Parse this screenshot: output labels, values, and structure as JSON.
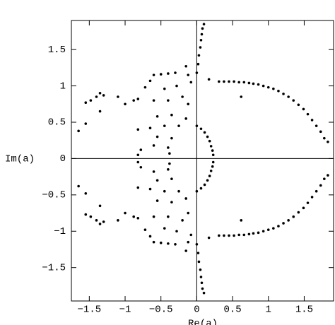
{
  "chart_data": {
    "type": "scatter",
    "x_label": "Re(a)",
    "y_label": "Im(a)",
    "xlim": [
      -1.75,
      1.91
    ],
    "ylim": [
      -1.96,
      1.9
    ],
    "xticks": [
      {
        "value": -1.5,
        "label": "−1.5"
      },
      {
        "value": -1,
        "label": "−1"
      },
      {
        "value": -0.5,
        "label": "−0.5"
      },
      0,
      0.5,
      1,
      1.5
    ],
    "yticks": [
      {
        "value": -1.5,
        "label": "−1.5"
      },
      {
        "value": -1,
        "label": "−1"
      },
      {
        "value": -0.5,
        "label": "−0.5"
      },
      0,
      0.5,
      1,
      1.5
    ],
    "color": "#000000",
    "x": [
      0.17,
      0.31,
      0.38,
      0.45,
      0.52,
      0.59,
      0.66,
      0.73,
      0.79,
      0.86,
      0.93,
      1.0,
      1.07,
      1.14,
      1.21,
      1.28,
      1.35,
      1.42,
      1.49,
      1.55,
      1.61,
      1.67,
      1.73,
      1.78,
      1.83,
      0.62,
      0.0,
      0.06,
      0.11,
      0.15,
      0.18,
      0.2,
      0.22,
      0.23,
      0.0,
      0.02,
      0.03,
      0.05,
      0.06,
      0.07,
      0.08,
      0.1,
      -0.15,
      -0.12,
      -0.3,
      -0.4,
      -0.5,
      -0.6,
      -0.65,
      -0.72,
      -0.45,
      -0.28,
      -0.08,
      -0.2,
      -0.12,
      -0.4,
      -0.6,
      -0.82,
      -0.35,
      -0.55,
      -0.15,
      -0.25,
      -0.45,
      -0.65,
      -0.82,
      -0.35,
      -0.55,
      -0.4,
      -0.6,
      -0.78,
      -0.38,
      -0.82,
      -1.65,
      -1.55,
      -1.55,
      -1.48,
      -1.4,
      -1.35,
      -1.3,
      -1.35,
      -1.1,
      -1.0,
      -0.88,
      0.17,
      0.31,
      0.38,
      0.45,
      0.52,
      0.59,
      0.66,
      0.73,
      0.79,
      0.86,
      0.93,
      1.0,
      1.07,
      1.14,
      1.21,
      1.28,
      1.35,
      1.42,
      1.49,
      1.55,
      1.61,
      1.67,
      1.73,
      1.78,
      1.83,
      0.62,
      0.0,
      0.06,
      0.11,
      0.15,
      0.18,
      0.2,
      0.22,
      0.23,
      0.0,
      0.02,
      0.03,
      0.05,
      0.06,
      0.07,
      0.08,
      0.1,
      -0.15,
      -0.12,
      -0.3,
      -0.4,
      -0.5,
      -0.6,
      -0.65,
      -0.72,
      -0.45,
      -0.28,
      -0.08,
      -0.2,
      -0.12,
      -0.4,
      -0.6,
      -0.82,
      -0.35,
      -0.55,
      -0.15,
      -0.25,
      -0.45,
      -0.65,
      -0.82,
      -0.35,
      -0.55,
      -0.4,
      -0.6,
      -0.78,
      -0.38,
      -0.82,
      -1.65,
      -1.55,
      -1.55,
      -1.48,
      -1.4,
      -1.35,
      -1.3,
      -1.35,
      -1.1,
      -1.0,
      -0.88
    ],
    "values": [
      1.09,
      1.06,
      1.06,
      1.06,
      1.06,
      1.05,
      1.05,
      1.04,
      1.03,
      1.02,
      1.0,
      0.98,
      0.96,
      0.93,
      0.89,
      0.85,
      0.8,
      0.74,
      0.68,
      0.61,
      0.53,
      0.45,
      0.37,
      0.28,
      0.23,
      0.85,
      0.45,
      0.41,
      0.36,
      0.3,
      0.24,
      0.17,
      0.11,
      0.05,
      1.18,
      1.3,
      1.42,
      1.53,
      1.63,
      1.71,
      1.79,
      1.85,
      1.27,
      1.15,
      1.18,
      1.17,
      1.16,
      1.15,
      1.07,
      0.98,
      0.96,
      1.0,
      1.05,
      0.85,
      0.75,
      0.8,
      0.8,
      0.82,
      0.6,
      0.58,
      0.55,
      0.45,
      0.45,
      0.42,
      0.4,
      0.28,
      0.3,
      0.15,
      0.18,
      0.12,
      0.07,
      0.05,
      0.38,
      0.48,
      0.77,
      0.8,
      0.85,
      0.9,
      0.87,
      0.65,
      0.85,
      0.75,
      0.8,
      -1.09,
      -1.06,
      -1.06,
      -1.06,
      -1.06,
      -1.05,
      -1.05,
      -1.04,
      -1.03,
      -1.02,
      -1.0,
      -0.98,
      -0.96,
      -0.93,
      -0.89,
      -0.85,
      -0.8,
      -0.74,
      -0.68,
      -0.61,
      -0.53,
      -0.45,
      -0.37,
      -0.28,
      -0.23,
      -0.85,
      -0.45,
      -0.41,
      -0.36,
      -0.3,
      -0.24,
      -0.17,
      -0.11,
      -0.05,
      -1.18,
      -1.3,
      -1.42,
      -1.53,
      -1.63,
      -1.71,
      -1.79,
      -1.85,
      -1.27,
      -1.15,
      -1.18,
      -1.17,
      -1.16,
      -1.15,
      -1.07,
      -0.98,
      -0.96,
      -1.0,
      -1.05,
      -0.85,
      -0.75,
      -0.8,
      -0.8,
      -0.82,
      -0.6,
      -0.58,
      -0.55,
      -0.45,
      -0.45,
      -0.42,
      -0.4,
      -0.28,
      -0.3,
      -0.15,
      -0.18,
      -0.12,
      -0.07,
      -0.05,
      -0.38,
      -0.48,
      -0.77,
      -0.8,
      -0.85,
      -0.9,
      -0.87,
      -0.65,
      -0.85,
      -0.75,
      -0.8
    ]
  }
}
